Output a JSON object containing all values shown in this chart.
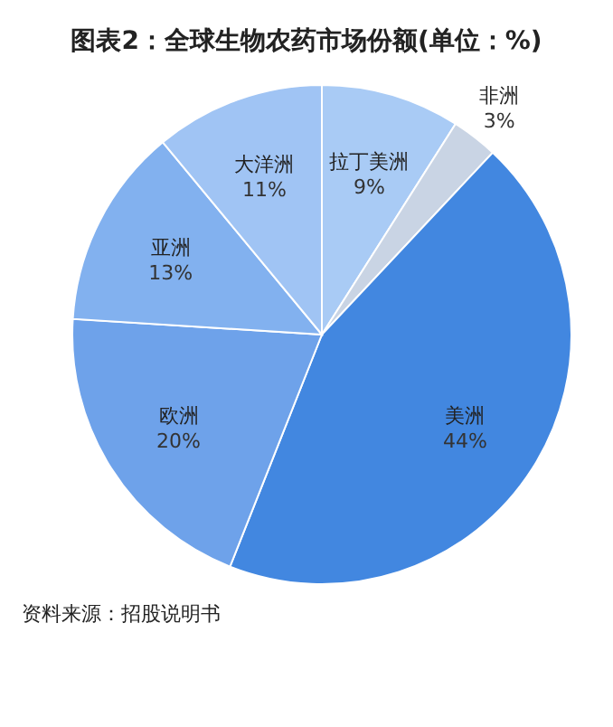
{
  "chart_data": {
    "type": "pie",
    "title": "图表2：全球生物农药市场份额(单位：%)",
    "categories": [
      "拉丁美洲",
      "非洲",
      "美洲",
      "欧洲",
      "亚洲",
      "大洋洲"
    ],
    "values": [
      9,
      3,
      44,
      20,
      13,
      11
    ],
    "colors": [
      "#a9cbf5",
      "#c9d4e4",
      "#4287e0",
      "#6ea2ea",
      "#82b1ef",
      "#a0c4f4"
    ],
    "value_labels": [
      "9%",
      "3%",
      "44%",
      "20%",
      "13%",
      "11%"
    ],
    "legend": false,
    "annotations": [
      "资料来源：招股说明书"
    ]
  }
}
